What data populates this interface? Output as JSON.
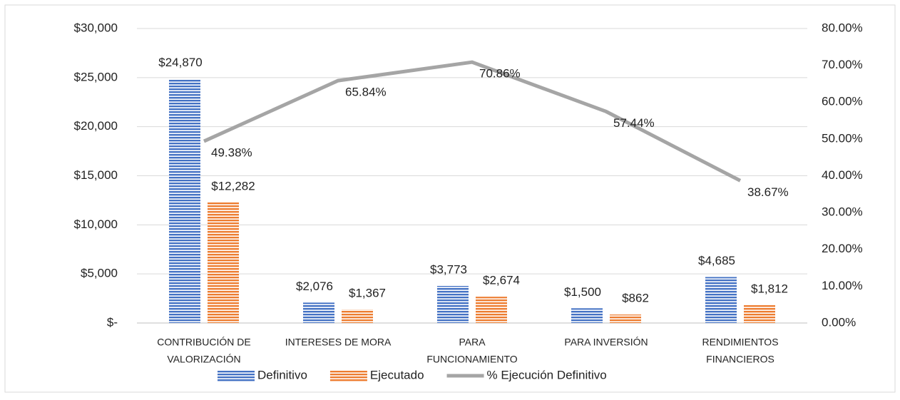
{
  "chart_data": {
    "type": "bar_line",
    "categories": [
      [
        "CONTRIBUCIÓN DE",
        "VALORIZACIÓN"
      ],
      [
        "INTERESES DE MORA"
      ],
      [
        "PARA",
        "FUNCIONAMIENTO"
      ],
      [
        "PARA INVERSIÓN"
      ],
      [
        "RENDIMIENTOS",
        "FINANCIEROS"
      ]
    ],
    "series": [
      {
        "name": "Definitivo",
        "type": "bar",
        "color": "#4472c4",
        "values": [
          24870,
          2076,
          3773,
          1500,
          4685
        ],
        "value_labels": [
          "$24,870",
          "$2,076",
          "$3,773",
          "$1,500",
          "$4,685"
        ]
      },
      {
        "name": "Ejecutado",
        "type": "bar",
        "color": "#ed7d31",
        "values": [
          12282,
          1367,
          2674,
          862,
          1812
        ],
        "value_labels": [
          "$12,282",
          "$1,367",
          "$2,674",
          "$862",
          "$1,812"
        ]
      },
      {
        "name": "% Ejecución Definitivo",
        "type": "line",
        "axis": "y2",
        "color": "#a5a5a5",
        "values": [
          49.38,
          65.84,
          70.86,
          57.44,
          38.67
        ],
        "value_labels": [
          "49.38%",
          "65.84%",
          "70.86%",
          "57.44%",
          "38.67%"
        ]
      }
    ],
    "ylim": [
      0,
      30000
    ],
    "yticks": [
      {
        "value": 0,
        "label": "$-"
      },
      {
        "value": 5000,
        "label": "$5,000"
      },
      {
        "value": 10000,
        "label": "$10,000"
      },
      {
        "value": 15000,
        "label": "$15,000"
      },
      {
        "value": 20000,
        "label": "$20,000"
      },
      {
        "value": 25000,
        "label": "$25,000"
      },
      {
        "value": 30000,
        "label": "$30,000"
      }
    ],
    "y2lim": [
      0,
      80
    ],
    "y2ticks": [
      {
        "value": 0,
        "label": "0.00%"
      },
      {
        "value": 10,
        "label": "10.00%"
      },
      {
        "value": 20,
        "label": "20.00%"
      },
      {
        "value": 30,
        "label": "30.00%"
      },
      {
        "value": 40,
        "label": "40.00%"
      },
      {
        "value": 50,
        "label": "50.00%"
      },
      {
        "value": 60,
        "label": "60.00%"
      },
      {
        "value": 70,
        "label": "70.00%"
      },
      {
        "value": 80,
        "label": "80.00%"
      }
    ],
    "grid": true,
    "legend": "bottom"
  }
}
